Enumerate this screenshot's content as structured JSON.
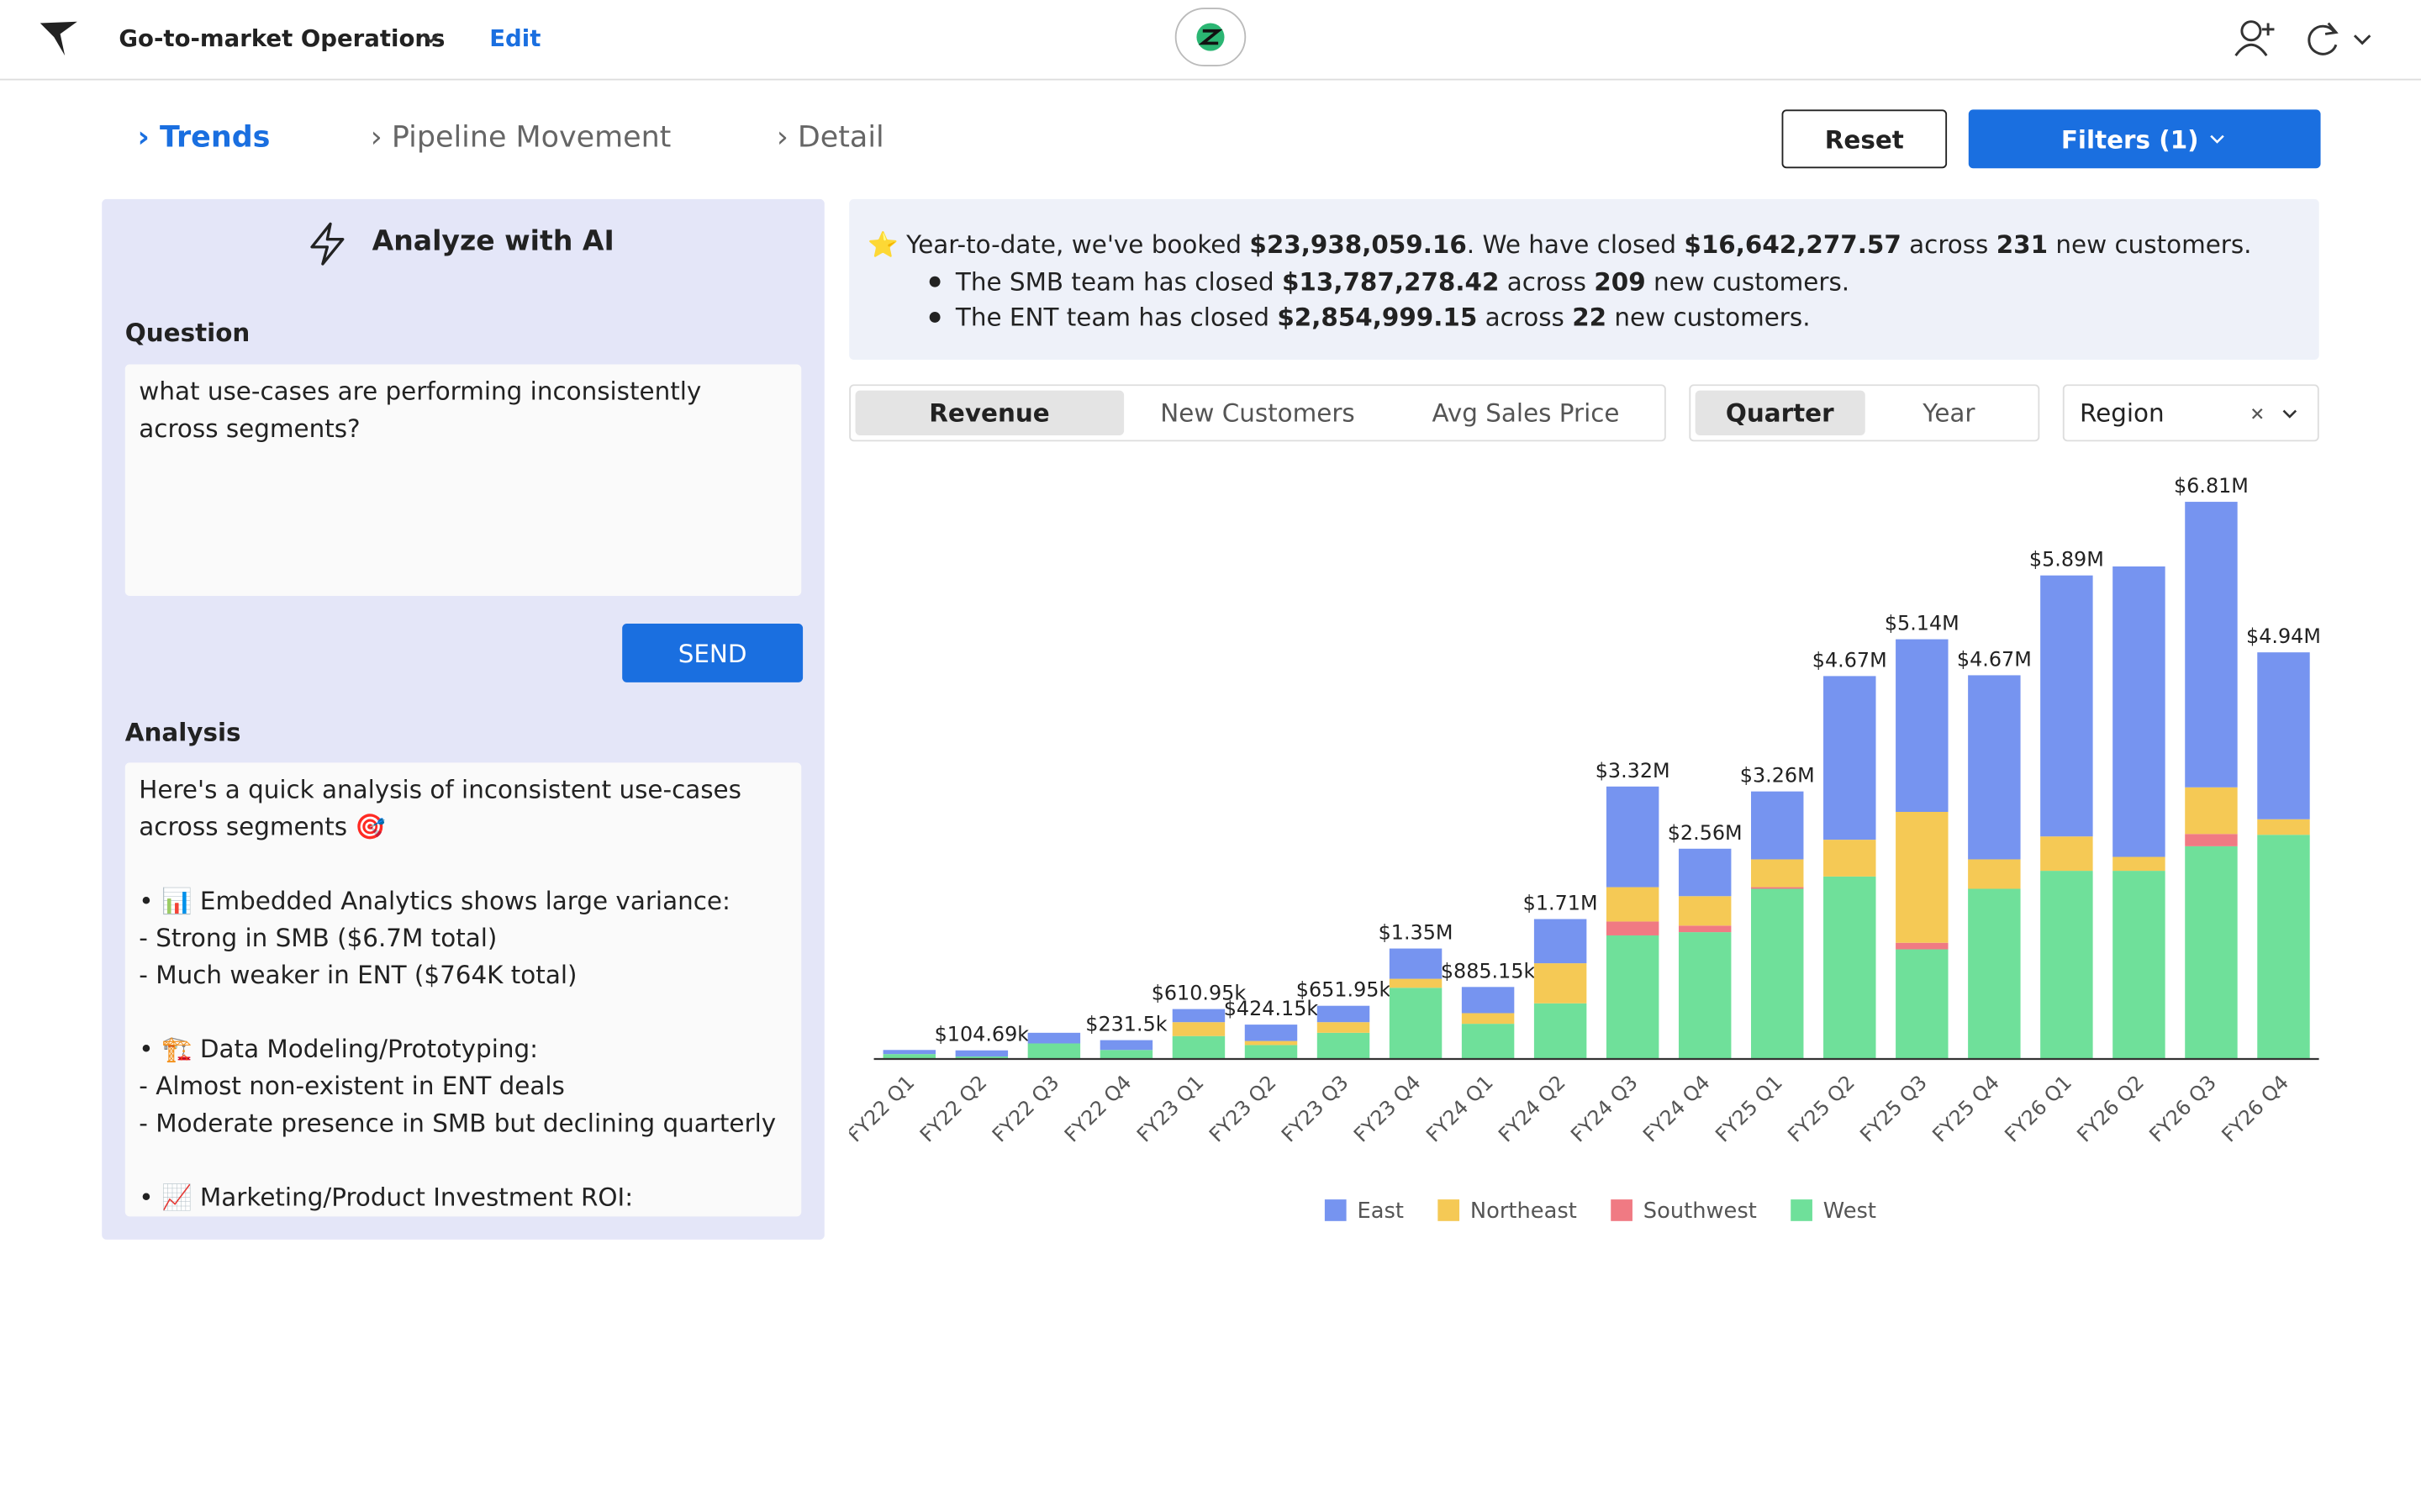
{
  "header": {
    "app_title": "Go-to-market Operations",
    "edit": "Edit"
  },
  "tabs": [
    "› Trends",
    "› Pipeline Movement",
    "› Detail"
  ],
  "buttons": {
    "reset": "Reset",
    "filters": "Filters (1)"
  },
  "ai_panel": {
    "title": "Analyze with AI",
    "question_label": "Question",
    "question_text": "what use-cases are performing inconsistently across segments?",
    "send": "SEND",
    "analysis_label": "Analysis",
    "analysis_blocks": [
      [
        "Here's a quick analysis of inconsistent use-cases across segments 🎯"
      ],
      [
        "• 📊 Embedded Analytics shows large variance:",
        "- Strong in SMB ($6.7M total)",
        "- Much weaker in ENT ($764K total)"
      ],
      [
        "• 🏗️ Data Modeling/Prototyping:",
        "- Almost non-existent in ENT deals",
        "- Moderate presence in SMB but declining quarterly"
      ],
      [
        "• 📈 Marketing/Product Investment ROI:"
      ]
    ]
  },
  "summary": {
    "lines": [
      [
        "⭐ Year-to-date, we've booked ",
        "$23,938,059.16",
        ". We have closed ",
        "$16,642,277.57",
        " across ",
        "231",
        " new customers."
      ],
      [
        "The SMB team has closed ",
        "$13,787,278.42",
        " across ",
        "209",
        " new customers."
      ],
      [
        "The ENT team has closed ",
        "$2,854,999.15",
        " across ",
        "22",
        " new customers."
      ]
    ]
  },
  "metric_toggle": [
    "Revenue",
    "New Customers",
    "Avg Sales Price"
  ],
  "period_toggle": [
    "Quarter",
    "Year"
  ],
  "group_select": "Region",
  "chart_data": {
    "type": "stacked_bar",
    "categories": [
      "FY22 Q1",
      "FY22 Q2",
      "FY22 Q3",
      "FY22 Q4",
      "FY23 Q1",
      "FY23 Q2",
      "FY23 Q3",
      "FY23 Q4",
      "FY24 Q1",
      "FY24 Q2",
      "FY24 Q3",
      "FY24 Q4",
      "FY25 Q1",
      "FY25 Q2",
      "FY25 Q3",
      "FY25 Q4",
      "FY26 Q1",
      "FY26 Q2",
      "FY26 Q3",
      "FY26 Q4"
    ],
    "series": [
      {
        "name": "West",
        "color": "#6fe09a",
        "values": [
          60000,
          30000,
          190000,
          110000,
          280000,
          170000,
          320000,
          870000,
          430000,
          680000,
          1510000,
          1550000,
          2080000,
          2230000,
          1340000,
          2080000,
          2300000,
          2300000,
          2600000,
          2740000
        ]
      },
      {
        "name": "Southwest",
        "color": "#f07a83",
        "values": [
          0,
          0,
          0,
          0,
          0,
          0,
          0,
          0,
          0,
          0,
          170000,
          80000,
          20000,
          0,
          80000,
          0,
          0,
          0,
          150000,
          0
        ]
      },
      {
        "name": "Northeast",
        "color": "#f5c955",
        "values": [
          0,
          0,
          0,
          0,
          170000,
          50000,
          130000,
          110000,
          130000,
          490000,
          420000,
          360000,
          340000,
          450000,
          1600000,
          360000,
          420000,
          170000,
          570000,
          190000
        ]
      },
      {
        "name": "East",
        "color": "#7694f0",
        "values": [
          50000,
          75000,
          130000,
          120000,
          160000,
          200000,
          200000,
          370000,
          320000,
          540000,
          1230000,
          580000,
          830000,
          2000000,
          2110000,
          2250000,
          3190000,
          3550000,
          3490000,
          2040000
        ]
      }
    ],
    "legend_order": [
      "East",
      "Northeast",
      "Southwest",
      "West"
    ],
    "total_labels": [
      null,
      "$104.69k",
      null,
      "$231.5k",
      "$610.95k",
      "$424.15k",
      "$651.95k",
      "$1.35M",
      "$885.15k",
      "$1.71M",
      "$3.32M",
      "$2.56M",
      "$3.26M",
      "$4.67M",
      "$5.14M",
      "$4.67M",
      "$5.89M",
      null,
      "$6.81M",
      "$4.94M"
    ],
    "ylim": [
      0,
      7000000
    ]
  }
}
